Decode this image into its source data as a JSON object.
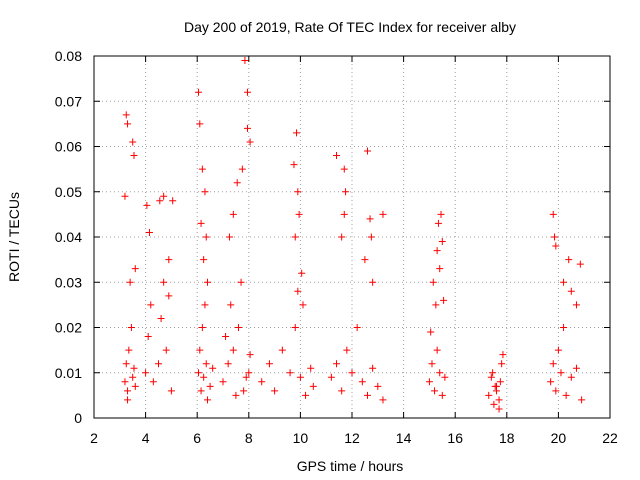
{
  "chart_data": {
    "type": "scatter",
    "title": "Day 200 of 2019, Rate Of TEC Index for receiver alby",
    "xlabel": "GPS time / hours",
    "ylabel": "ROTI / TECUs",
    "xlim": [
      2,
      22
    ],
    "ylim": [
      0,
      0.08
    ],
    "grid": true,
    "marker": "+",
    "color": "#ff0000",
    "x_ticks": [
      2,
      4,
      6,
      8,
      10,
      12,
      14,
      16,
      18,
      20,
      22
    ],
    "y_ticks": [
      0,
      0.01,
      0.02,
      0.03,
      0.04,
      0.05,
      0.06,
      0.07,
      0.08
    ],
    "x_tick_labels": [
      "2",
      "4",
      "6",
      "8",
      "10",
      "12",
      "14",
      "16",
      "18",
      "20",
      "22"
    ],
    "y_tick_labels": [
      "0",
      "0.01",
      "0.02",
      "0.03",
      "0.04",
      "0.05",
      "0.06",
      "0.07",
      "0.08"
    ],
    "series": [
      {
        "name": "ROTI",
        "x": [
          3.2,
          3.25,
          3.3,
          3.35,
          3.3,
          3.45,
          3.5,
          3.55,
          3.6,
          3.2,
          3.4,
          3.6,
          3.3,
          3.5,
          3.25,
          3.55,
          4.0,
          4.1,
          4.2,
          4.3,
          4.5,
          4.6,
          4.7,
          4.8,
          4.9,
          5.0,
          4.15,
          4.05,
          4.7,
          4.55,
          4.9,
          5.05,
          6.05,
          6.1,
          6.15,
          6.2,
          6.25,
          6.3,
          6.35,
          6.4,
          6.5,
          6.6,
          6.05,
          6.1,
          6.2,
          6.35,
          6.15,
          6.25,
          6.4,
          6.3,
          7.0,
          7.2,
          7.4,
          7.6,
          7.8,
          8.0,
          7.1,
          7.3,
          7.5,
          7.7,
          7.9,
          8.05,
          7.85,
          7.95,
          8.05,
          7.75,
          7.4,
          7.55,
          7.25,
          7.95,
          8.5,
          8.8,
          9.0,
          9.3,
          9.6,
          9.8,
          10.0,
          10.2,
          10.4,
          10.5,
          9.75,
          9.85,
          9.9,
          9.95,
          9.8,
          10.05,
          9.9,
          10.1,
          11.2,
          11.4,
          11.6,
          11.8,
          12.0,
          12.2,
          12.4,
          12.6,
          12.8,
          13.0,
          13.2,
          11.4,
          11.7,
          11.75,
          11.7,
          11.6,
          12.6,
          12.7,
          12.75,
          13.2,
          12.5,
          12.8,
          15.0,
          15.1,
          15.2,
          15.3,
          15.4,
          15.5,
          15.6,
          15.05,
          15.15,
          15.3,
          15.35,
          15.45,
          15.55,
          15.25,
          15.4,
          15.5,
          17.3,
          17.4,
          17.5,
          17.6,
          17.7,
          17.8,
          17.45,
          17.6,
          17.75,
          17.85,
          17.7,
          17.55,
          19.7,
          19.8,
          19.9,
          20.0,
          20.1,
          20.2,
          20.3,
          20.5,
          20.7,
          20.9,
          19.8,
          19.85,
          19.9,
          20.2,
          20.4,
          20.5,
          20.7,
          20.85
        ],
        "y": [
          0.008,
          0.012,
          0.006,
          0.015,
          0.004,
          0.02,
          0.009,
          0.011,
          0.007,
          0.049,
          0.03,
          0.033,
          0.065,
          0.061,
          0.067,
          0.058,
          0.01,
          0.018,
          0.025,
          0.008,
          0.012,
          0.022,
          0.03,
          0.015,
          0.035,
          0.006,
          0.041,
          0.047,
          0.049,
          0.048,
          0.027,
          0.048,
          0.01,
          0.015,
          0.006,
          0.02,
          0.009,
          0.025,
          0.012,
          0.004,
          0.007,
          0.011,
          0.072,
          0.065,
          0.055,
          0.04,
          0.043,
          0.035,
          0.03,
          0.05,
          0.008,
          0.012,
          0.015,
          0.02,
          0.006,
          0.01,
          0.018,
          0.025,
          0.005,
          0.03,
          0.009,
          0.014,
          0.079,
          0.072,
          0.061,
          0.055,
          0.045,
          0.052,
          0.04,
          0.064,
          0.008,
          0.012,
          0.006,
          0.015,
          0.01,
          0.02,
          0.009,
          0.005,
          0.011,
          0.007,
          0.056,
          0.063,
          0.05,
          0.045,
          0.04,
          0.032,
          0.028,
          0.025,
          0.009,
          0.012,
          0.006,
          0.015,
          0.01,
          0.02,
          0.008,
          0.005,
          0.011,
          0.007,
          0.004,
          0.058,
          0.055,
          0.05,
          0.045,
          0.04,
          0.059,
          0.044,
          0.04,
          0.045,
          0.035,
          0.03,
          0.008,
          0.012,
          0.006,
          0.015,
          0.01,
          0.005,
          0.009,
          0.019,
          0.03,
          0.037,
          0.043,
          0.045,
          0.026,
          0.025,
          0.033,
          0.039,
          0.005,
          0.009,
          0.003,
          0.007,
          0.004,
          0.012,
          0.01,
          0.006,
          0.008,
          0.014,
          0.002,
          0.007,
          0.008,
          0.012,
          0.006,
          0.015,
          0.01,
          0.02,
          0.005,
          0.009,
          0.011,
          0.004,
          0.045,
          0.04,
          0.038,
          0.03,
          0.035,
          0.028,
          0.025,
          0.034
        ]
      }
    ]
  }
}
